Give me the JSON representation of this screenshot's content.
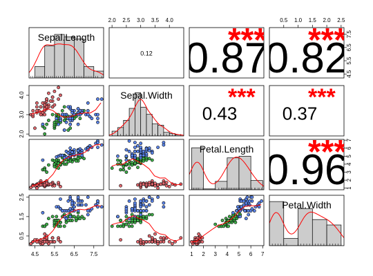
{
  "chart_data": {
    "type": "scatter-matrix",
    "variables": [
      "Sepal.Length",
      "Sepal.Width",
      "Petal.Length",
      "Petal.Width"
    ],
    "colors": {
      "setosa": "#e0686e",
      "versicolor": "#3fae49",
      "virginica": "#5b84e8",
      "hist_fill": "#cccccc",
      "smooth": "#ff0000",
      "stars": "#ff0000",
      "text": "#000000"
    },
    "axis_ticks": {
      "Sepal.Length": [
        "4.5",
        "5.5",
        "6.5",
        "7.5"
      ],
      "Sepal.Width": [
        "2.0",
        "2.5",
        "3.0",
        "3.5",
        "4.0"
      ],
      "Petal.Length": [
        "1",
        "2",
        "3",
        "4",
        "5",
        "6",
        "7"
      ],
      "Petal.Width": [
        "0.5",
        "1.0",
        "1.5",
        "2.0",
        "2.5"
      ]
    },
    "left_axis_ticks": {
      "Sepal.Width": [
        "2.0",
        "3.0",
        "4.0"
      ],
      "Petal.Width": [
        "0.5",
        "1.5",
        "2.5"
      ]
    },
    "correlations": [
      {
        "row": "Sepal.Length",
        "col": "Sepal.Width",
        "label": "0.12",
        "stars": "",
        "size": "small"
      },
      {
        "row": "Sepal.Length",
        "col": "Petal.Length",
        "label": "0.87",
        "stars": "***",
        "size": "huge"
      },
      {
        "row": "Sepal.Length",
        "col": "Petal.Width",
        "label": "0.82",
        "stars": "***",
        "size": "huge"
      },
      {
        "row": "Sepal.Width",
        "col": "Petal.Length",
        "label": "0.43",
        "stars": "***",
        "size": "medium"
      },
      {
        "row": "Sepal.Width",
        "col": "Petal.Width",
        "label": "0.37",
        "stars": "***",
        "size": "medium"
      },
      {
        "row": "Petal.Length",
        "col": "Petal.Width",
        "label": "0.96",
        "stars": "***",
        "size": "huge"
      }
    ],
    "histograms": {
      "Sepal.Length": {
        "range": [
          4.2,
          8.0
        ],
        "bins": [
          4.5,
          5.0,
          5.5,
          6.0,
          6.5,
          7.0,
          7.5,
          8.0
        ],
        "counts": [
          10,
          28,
          38,
          36,
          34,
          10,
          6
        ],
        "ymax": 44
      },
      "Sepal.Width": {
        "range": [
          1.9,
          4.5
        ],
        "bins": [
          2.0,
          2.2,
          2.4,
          2.6,
          2.8,
          3.0,
          3.2,
          3.4,
          3.6,
          3.8,
          4.0,
          4.2,
          4.4
        ],
        "counts": [
          4,
          7,
          13,
          23,
          36,
          24,
          18,
          10,
          9,
          3,
          2,
          1
        ],
        "ymax": 42
      },
      "Petal.Length": {
        "range": [
          0.8,
          7.1
        ],
        "bins": [
          1,
          2,
          3,
          4,
          5,
          6,
          7
        ],
        "counts": [
          50,
          1,
          10,
          38,
          40,
          11
        ],
        "ymax": 60
      },
      "Petal.Width": {
        "range": [
          0.0,
          2.6
        ],
        "bins": [
          0.0,
          0.5,
          1.0,
          1.5,
          2.0,
          2.5
        ],
        "counts": [
          49,
          8,
          41,
          29,
          23
        ],
        "ymax": 56
      }
    },
    "scatter_points": [
      [
        5.1,
        3.5,
        1.4,
        0.2,
        0
      ],
      [
        4.9,
        3.0,
        1.4,
        0.2,
        0
      ],
      [
        4.7,
        3.2,
        1.3,
        0.2,
        0
      ],
      [
        4.6,
        3.1,
        1.5,
        0.2,
        0
      ],
      [
        5.0,
        3.6,
        1.4,
        0.2,
        0
      ],
      [
        5.4,
        3.9,
        1.7,
        0.4,
        0
      ],
      [
        4.6,
        3.4,
        1.4,
        0.3,
        0
      ],
      [
        5.0,
        3.4,
        1.5,
        0.2,
        0
      ],
      [
        4.4,
        2.9,
        1.4,
        0.2,
        0
      ],
      [
        4.9,
        3.1,
        1.5,
        0.1,
        0
      ],
      [
        5.4,
        3.7,
        1.5,
        0.2,
        0
      ],
      [
        4.8,
        3.4,
        1.6,
        0.2,
        0
      ],
      [
        4.8,
        3.0,
        1.4,
        0.1,
        0
      ],
      [
        4.3,
        3.0,
        1.1,
        0.1,
        0
      ],
      [
        5.8,
        4.0,
        1.2,
        0.2,
        0
      ],
      [
        5.7,
        4.4,
        1.5,
        0.4,
        0
      ],
      [
        5.4,
        3.9,
        1.3,
        0.4,
        0
      ],
      [
        5.1,
        3.5,
        1.4,
        0.3,
        0
      ],
      [
        5.7,
        3.8,
        1.7,
        0.3,
        0
      ],
      [
        5.1,
        3.8,
        1.5,
        0.3,
        0
      ],
      [
        5.4,
        3.4,
        1.7,
        0.2,
        0
      ],
      [
        5.1,
        3.7,
        1.5,
        0.4,
        0
      ],
      [
        4.6,
        3.6,
        1.0,
        0.2,
        0
      ],
      [
        5.1,
        3.3,
        1.7,
        0.5,
        0
      ],
      [
        4.8,
        3.4,
        1.9,
        0.2,
        0
      ],
      [
        5.0,
        3.0,
        1.6,
        0.2,
        0
      ],
      [
        5.0,
        3.4,
        1.6,
        0.4,
        0
      ],
      [
        5.2,
        3.5,
        1.5,
        0.2,
        0
      ],
      [
        5.2,
        3.4,
        1.4,
        0.2,
        0
      ],
      [
        4.7,
        3.2,
        1.6,
        0.2,
        0
      ],
      [
        4.8,
        3.1,
        1.6,
        0.2,
        0
      ],
      [
        5.4,
        3.4,
        1.5,
        0.4,
        0
      ],
      [
        5.2,
        4.1,
        1.5,
        0.1,
        0
      ],
      [
        5.5,
        4.2,
        1.4,
        0.2,
        0
      ],
      [
        4.9,
        3.1,
        1.5,
        0.2,
        0
      ],
      [
        5.0,
        3.2,
        1.2,
        0.2,
        0
      ],
      [
        5.5,
        3.5,
        1.3,
        0.2,
        0
      ],
      [
        4.9,
        3.6,
        1.4,
        0.1,
        0
      ],
      [
        4.4,
        3.0,
        1.3,
        0.2,
        0
      ],
      [
        5.1,
        3.4,
        1.5,
        0.2,
        0
      ],
      [
        5.0,
        3.5,
        1.3,
        0.3,
        0
      ],
      [
        4.5,
        2.3,
        1.3,
        0.3,
        0
      ],
      [
        4.4,
        3.2,
        1.3,
        0.2,
        0
      ],
      [
        5.0,
        3.5,
        1.6,
        0.6,
        0
      ],
      [
        5.1,
        3.8,
        1.9,
        0.4,
        0
      ],
      [
        4.8,
        3.0,
        1.4,
        0.3,
        0
      ],
      [
        5.1,
        3.8,
        1.6,
        0.2,
        0
      ],
      [
        4.6,
        3.2,
        1.4,
        0.2,
        0
      ],
      [
        5.3,
        3.7,
        1.5,
        0.2,
        0
      ],
      [
        5.0,
        3.3,
        1.4,
        0.2,
        0
      ],
      [
        7.0,
        3.2,
        4.7,
        1.4,
        1
      ],
      [
        6.4,
        3.2,
        4.5,
        1.5,
        1
      ],
      [
        6.9,
        3.1,
        4.9,
        1.5,
        1
      ],
      [
        5.5,
        2.3,
        4.0,
        1.3,
        1
      ],
      [
        6.5,
        2.8,
        4.6,
        1.5,
        1
      ],
      [
        5.7,
        2.8,
        4.5,
        1.3,
        1
      ],
      [
        6.3,
        3.3,
        4.7,
        1.6,
        1
      ],
      [
        4.9,
        2.4,
        3.3,
        1.0,
        1
      ],
      [
        6.6,
        2.9,
        4.6,
        1.3,
        1
      ],
      [
        5.2,
        2.7,
        3.9,
        1.4,
        1
      ],
      [
        5.0,
        2.0,
        3.5,
        1.0,
        1
      ],
      [
        5.9,
        3.0,
        4.2,
        1.5,
        1
      ],
      [
        6.0,
        2.2,
        4.0,
        1.0,
        1
      ],
      [
        6.1,
        2.9,
        4.7,
        1.4,
        1
      ],
      [
        5.6,
        2.9,
        3.6,
        1.3,
        1
      ],
      [
        6.7,
        3.1,
        4.4,
        1.4,
        1
      ],
      [
        5.6,
        3.0,
        4.5,
        1.5,
        1
      ],
      [
        5.8,
        2.7,
        4.1,
        1.0,
        1
      ],
      [
        6.2,
        2.2,
        4.5,
        1.5,
        1
      ],
      [
        5.6,
        2.5,
        3.9,
        1.1,
        1
      ],
      [
        5.9,
        3.2,
        4.8,
        1.8,
        1
      ],
      [
        6.1,
        2.8,
        4.0,
        1.3,
        1
      ],
      [
        6.3,
        2.5,
        4.9,
        1.5,
        1
      ],
      [
        6.1,
        2.8,
        4.7,
        1.2,
        1
      ],
      [
        6.4,
        2.9,
        4.3,
        1.3,
        1
      ],
      [
        6.6,
        3.0,
        4.4,
        1.4,
        1
      ],
      [
        6.8,
        2.8,
        4.8,
        1.4,
        1
      ],
      [
        6.7,
        3.0,
        5.0,
        1.7,
        1
      ],
      [
        6.0,
        2.9,
        4.5,
        1.5,
        1
      ],
      [
        5.7,
        2.6,
        3.5,
        1.0,
        1
      ],
      [
        5.5,
        2.4,
        3.8,
        1.1,
        1
      ],
      [
        5.5,
        2.4,
        3.7,
        1.0,
        1
      ],
      [
        5.8,
        2.7,
        3.9,
        1.2,
        1
      ],
      [
        6.0,
        2.7,
        5.1,
        1.6,
        1
      ],
      [
        5.4,
        3.0,
        4.5,
        1.5,
        1
      ],
      [
        6.0,
        3.4,
        4.5,
        1.6,
        1
      ],
      [
        6.7,
        3.1,
        4.7,
        1.5,
        1
      ],
      [
        6.3,
        2.3,
        4.4,
        1.3,
        1
      ],
      [
        5.6,
        3.0,
        4.1,
        1.3,
        1
      ],
      [
        5.5,
        2.5,
        4.0,
        1.3,
        1
      ],
      [
        5.5,
        2.6,
        4.4,
        1.2,
        1
      ],
      [
        6.1,
        3.0,
        4.6,
        1.4,
        1
      ],
      [
        5.8,
        2.6,
        4.0,
        1.2,
        1
      ],
      [
        5.0,
        2.3,
        3.3,
        1.0,
        1
      ],
      [
        5.6,
        2.7,
        4.2,
        1.3,
        1
      ],
      [
        5.7,
        3.0,
        4.2,
        1.2,
        1
      ],
      [
        5.7,
        2.9,
        4.2,
        1.3,
        1
      ],
      [
        6.2,
        2.9,
        4.3,
        1.3,
        1
      ],
      [
        5.1,
        2.5,
        3.0,
        1.1,
        1
      ],
      [
        5.7,
        2.8,
        4.1,
        1.3,
        1
      ],
      [
        6.3,
        3.3,
        6.0,
        2.5,
        2
      ],
      [
        5.8,
        2.7,
        5.1,
        1.9,
        2
      ],
      [
        7.1,
        3.0,
        5.9,
        2.1,
        2
      ],
      [
        6.3,
        2.9,
        5.6,
        1.8,
        2
      ],
      [
        6.5,
        3.0,
        5.8,
        2.2,
        2
      ],
      [
        7.6,
        3.0,
        6.6,
        2.1,
        2
      ],
      [
        4.9,
        2.5,
        4.5,
        1.7,
        2
      ],
      [
        7.3,
        2.9,
        6.3,
        1.8,
        2
      ],
      [
        6.7,
        2.5,
        5.8,
        1.8,
        2
      ],
      [
        7.2,
        3.6,
        6.1,
        2.5,
        2
      ],
      [
        6.5,
        3.2,
        5.1,
        2.0,
        2
      ],
      [
        6.4,
        2.7,
        5.3,
        1.9,
        2
      ],
      [
        6.8,
        3.0,
        5.5,
        2.1,
        2
      ],
      [
        5.7,
        2.5,
        5.0,
        2.0,
        2
      ],
      [
        5.8,
        2.8,
        5.1,
        2.4,
        2
      ],
      [
        6.4,
        3.2,
        5.3,
        2.3,
        2
      ],
      [
        6.5,
        3.0,
        5.5,
        1.8,
        2
      ],
      [
        7.7,
        3.8,
        6.7,
        2.2,
        2
      ],
      [
        7.7,
        2.6,
        6.9,
        2.3,
        2
      ],
      [
        6.0,
        2.2,
        5.0,
        1.5,
        2
      ],
      [
        6.9,
        3.2,
        5.7,
        2.3,
        2
      ],
      [
        5.6,
        2.8,
        4.9,
        2.0,
        2
      ],
      [
        7.7,
        2.8,
        6.7,
        2.0,
        2
      ],
      [
        6.3,
        2.7,
        4.9,
        1.8,
        2
      ],
      [
        6.7,
        3.3,
        5.7,
        2.1,
        2
      ],
      [
        7.2,
        3.2,
        6.0,
        1.8,
        2
      ],
      [
        6.2,
        2.8,
        4.8,
        1.8,
        2
      ],
      [
        6.1,
        3.0,
        4.9,
        1.8,
        2
      ],
      [
        6.4,
        2.8,
        5.6,
        2.1,
        2
      ],
      [
        7.2,
        3.0,
        5.8,
        1.6,
        2
      ],
      [
        7.4,
        2.8,
        6.1,
        1.9,
        2
      ],
      [
        7.9,
        3.8,
        6.4,
        2.0,
        2
      ],
      [
        6.4,
        2.8,
        5.6,
        2.2,
        2
      ],
      [
        6.3,
        2.8,
        5.1,
        1.5,
        2
      ],
      [
        6.1,
        2.6,
        5.6,
        1.4,
        2
      ],
      [
        7.7,
        3.0,
        6.1,
        2.3,
        2
      ],
      [
        6.3,
        3.4,
        5.6,
        2.4,
        2
      ],
      [
        6.4,
        3.1,
        5.5,
        1.8,
        2
      ],
      [
        6.0,
        3.0,
        4.8,
        1.8,
        2
      ],
      [
        6.9,
        3.1,
        5.4,
        2.1,
        2
      ],
      [
        6.7,
        3.1,
        5.6,
        2.4,
        2
      ],
      [
        6.9,
        3.1,
        5.1,
        2.3,
        2
      ],
      [
        5.8,
        2.7,
        5.1,
        1.9,
        2
      ],
      [
        6.8,
        3.2,
        5.9,
        2.3,
        2
      ],
      [
        6.7,
        3.3,
        5.7,
        2.5,
        2
      ],
      [
        6.7,
        3.0,
        5.2,
        2.3,
        2
      ],
      [
        6.3,
        2.5,
        5.0,
        1.9,
        2
      ],
      [
        6.5,
        3.0,
        5.2,
        2.0,
        2
      ],
      [
        6.2,
        3.4,
        5.4,
        2.3,
        2
      ],
      [
        5.9,
        3.0,
        5.1,
        1.8,
        2
      ]
    ]
  }
}
